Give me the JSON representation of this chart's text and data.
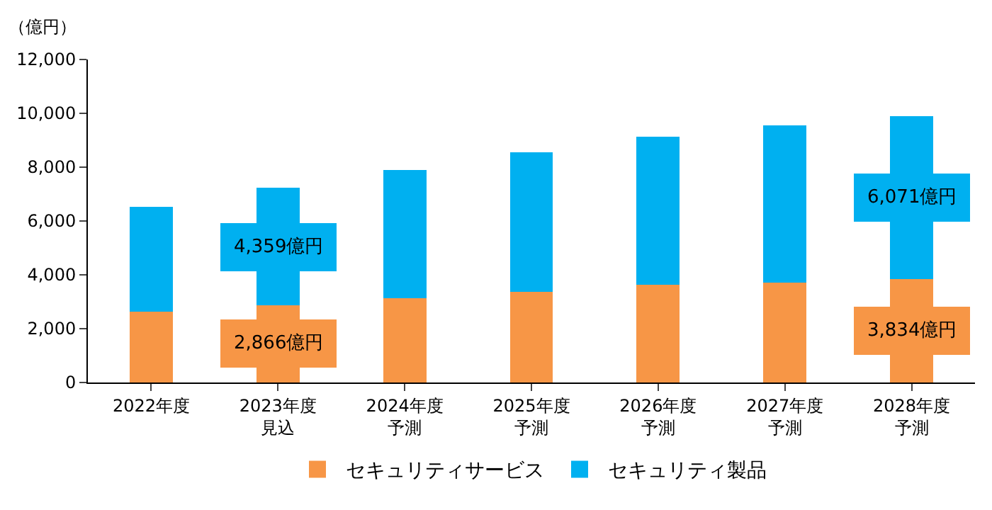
{
  "chart_data": {
    "type": "bar",
    "stacked": true,
    "ylabel": "（億円）",
    "categories": [
      "2022年度",
      "2023年度見込",
      "2024年度予測",
      "2025年度予測",
      "2026年度予測",
      "2027年度予測",
      "2028年度予測"
    ],
    "series": [
      {
        "name": "セキュリティサービス",
        "color": "#f79646",
        "values": [
          2620,
          2866,
          3130,
          3380,
          3630,
          3700,
          3834
        ],
        "value_labels": [
          null,
          "2,866億円",
          null,
          null,
          null,
          null,
          "3,834億円"
        ]
      },
      {
        "name": "セキュリティ製品",
        "color": "#00b0f0",
        "values": [
          3900,
          4359,
          4760,
          5180,
          5500,
          5840,
          6071
        ],
        "value_labels": [
          null,
          "4,359億円",
          null,
          null,
          null,
          null,
          "6,071億円"
        ]
      }
    ],
    "ylim": [
      0,
      12000
    ],
    "yticks": [
      {
        "value": 0,
        "label": "0"
      },
      {
        "value": 2000,
        "label": "2,000"
      },
      {
        "value": 4000,
        "label": "4,000"
      },
      {
        "value": 6000,
        "label": "6,000"
      },
      {
        "value": 8000,
        "label": "8,000"
      },
      {
        "value": 10000,
        "label": "10,000"
      },
      {
        "value": 12000,
        "label": "12,000"
      }
    ],
    "legend": "bottom"
  }
}
